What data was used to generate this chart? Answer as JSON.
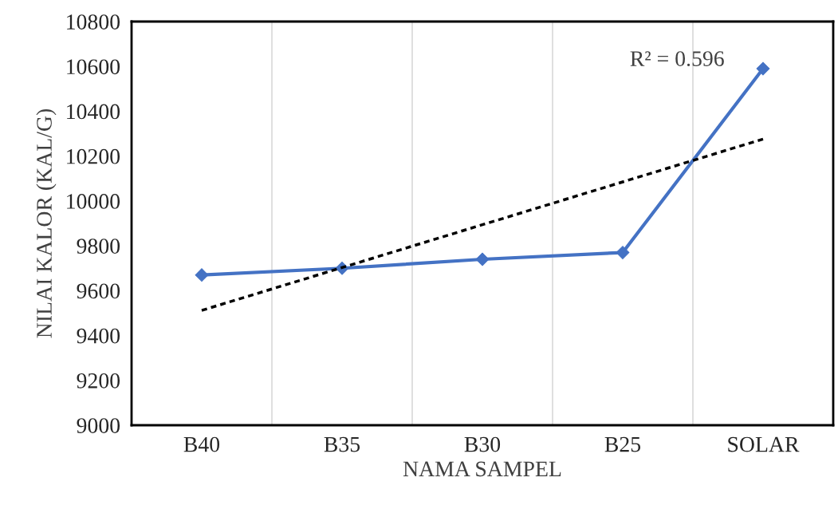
{
  "chart_data": {
    "type": "line",
    "xlabel": "NAMA SAMPEL",
    "ylabel": "NILAI KALOR (KAL/G)",
    "categories": [
      "B40",
      "B35",
      "B30",
      "B25",
      "SOLAR"
    ],
    "series": [
      {
        "color": "#4472c4",
        "values": [
          9670,
          9700,
          9740,
          9770,
          10590
        ],
        "marker": "diamond",
        "line_style": "solid"
      },
      {
        "color": "#000000",
        "x": [
          "B40",
          "SOLAR"
        ],
        "values": [
          9512,
          10276
        ],
        "marker": "none",
        "line_style": "dotted"
      }
    ],
    "ylim": [
      9000,
      10800
    ],
    "yticks": [
      9000,
      9200,
      9400,
      9600,
      9800,
      10000,
      10200,
      10400,
      10600,
      10800
    ],
    "grid": "x",
    "legend": false,
    "annotations": [
      "R² = 0.596"
    ]
  }
}
